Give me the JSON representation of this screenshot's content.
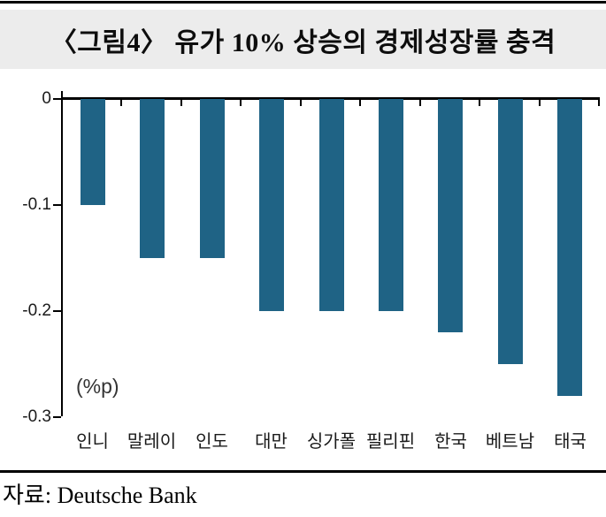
{
  "title": "〈그림4〉 유가 10% 상승의 경제성장률 충격",
  "unit_label": "(%p)",
  "source": "자료: Deutsche Bank",
  "colors": {
    "bar": "#1F6385",
    "title_band": "#ECECEC",
    "axis": "#000000"
  },
  "chart_data": {
    "type": "bar",
    "title": "〈그림4〉 유가 10% 상승의 경제성장률 충격",
    "categories": [
      "인니",
      "말레이",
      "인도",
      "대만",
      "싱가폴",
      "필리핀",
      "한국",
      "베트남",
      "태국"
    ],
    "values": [
      -0.1,
      -0.15,
      -0.15,
      -0.2,
      -0.2,
      -0.2,
      -0.22,
      -0.25,
      -0.28
    ],
    "xlabel": "",
    "ylabel": "(%p)",
    "ylim": [
      -0.3,
      0
    ],
    "yticks": [
      0,
      -0.1,
      -0.2,
      -0.3
    ],
    "ytick_labels": [
      "0",
      "-0.1",
      "-0.2",
      "-0.3"
    ],
    "bar_color": "#1F6385",
    "grid": false,
    "legend": false,
    "source": "자료: Deutsche Bank"
  }
}
